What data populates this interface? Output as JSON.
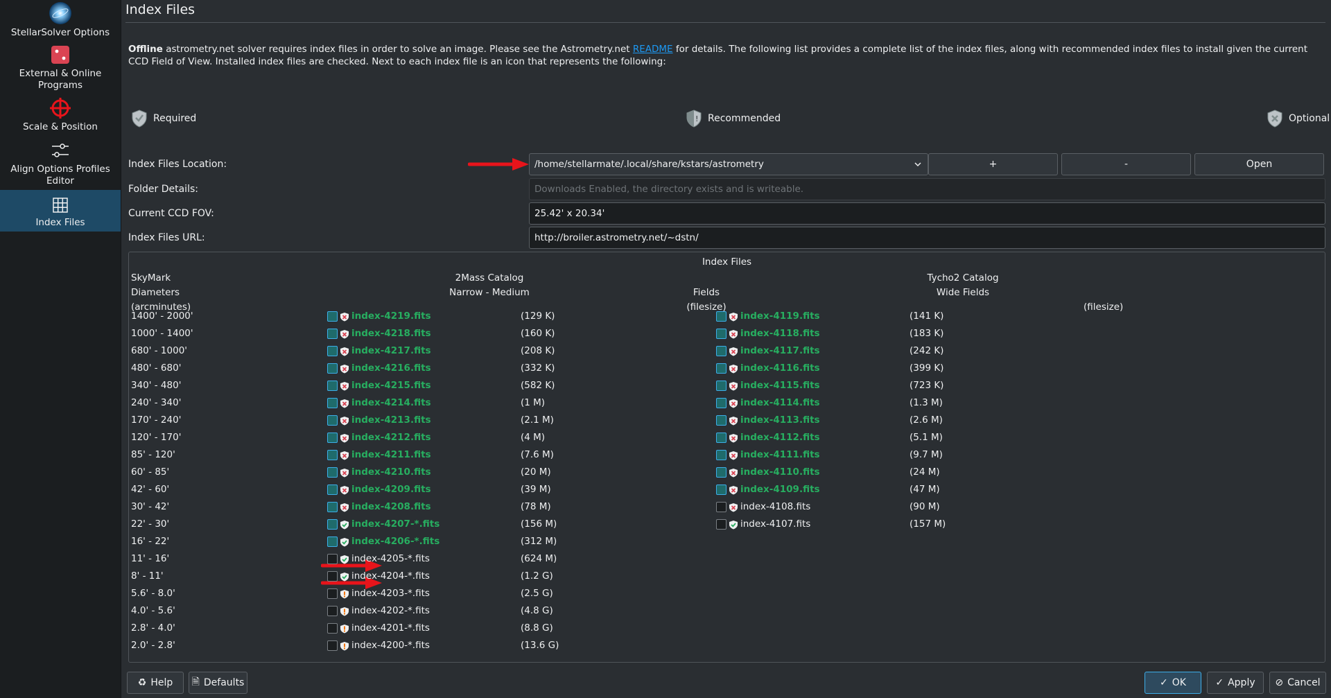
{
  "sidebar": {
    "items": [
      {
        "label": "StellarSolver Options"
      },
      {
        "label": "External & Online Programs"
      },
      {
        "label": "Scale & Position"
      },
      {
        "label": "Align Options Profiles Editor"
      },
      {
        "label": "Index Files"
      }
    ]
  },
  "page": {
    "title": "Index Files",
    "desc_bold": "Offline",
    "desc_pre": " astrometry.net solver requires index files in order to solve an image. Please see the Astrometry.net ",
    "desc_link": "README",
    "desc_post": " for details. The following list provides a complete list of the index files, along with recommended index files to install given the current CCD Field of View. Installed index files are checked. Next to each index file is an icon that represents the following:"
  },
  "legend": {
    "required": "Required",
    "recommended": "Recommended",
    "optional": "Optional"
  },
  "form": {
    "location_label": "Index Files Location:",
    "location_value": "/home/stellarmate/.local/share/kstars/astrometry",
    "add_label": "+",
    "remove_label": "-",
    "open_label": "Open",
    "folder_label": "Folder Details:",
    "folder_value": "Downloads Enabled, the directory exists and is writeable.",
    "fov_label": "Current CCD FOV:",
    "fov_value": "25.42' x 20.34'",
    "url_label": "Index Files URL:",
    "url_value": "http://broiler.astrometry.net/~dstn/"
  },
  "index_group": {
    "title": "Index Files",
    "skymark_line1": "SkyMark",
    "skymark_line2": "Diameters",
    "skymark_line3": "(arcminutes)",
    "mass_line1": "2Mass Catalog",
    "mass_line2": "Narrow - Medium",
    "fields_line1": "Fields",
    "fields_line2": "(filesize)",
    "tycho_line1": "Tycho2 Catalog",
    "tycho_line2": "Wide Fields",
    "tycho_filesize": "(filesize)",
    "rows": [
      {
        "range": "1400' - 2000'",
        "m_name": "index-4219.fits",
        "m_size": "(129 K)",
        "m_on": true,
        "m_icon": "optional",
        "t_name": "index-4119.fits",
        "t_size": "(141 K)",
        "t_on": true,
        "t_icon": "optional"
      },
      {
        "range": "1000' - 1400'",
        "m_name": "index-4218.fits",
        "m_size": "(160 K)",
        "m_on": true,
        "m_icon": "optional",
        "t_name": "index-4118.fits",
        "t_size": "(183 K)",
        "t_on": true,
        "t_icon": "optional"
      },
      {
        "range": "680' - 1000'",
        "m_name": "index-4217.fits",
        "m_size": "(208 K)",
        "m_on": true,
        "m_icon": "optional",
        "t_name": "index-4117.fits",
        "t_size": "(242 K)",
        "t_on": true,
        "t_icon": "optional"
      },
      {
        "range": "480' - 680'",
        "m_name": "index-4216.fits",
        "m_size": "(332 K)",
        "m_on": true,
        "m_icon": "optional",
        "t_name": "index-4116.fits",
        "t_size": "(399 K)",
        "t_on": true,
        "t_icon": "optional"
      },
      {
        "range": "340' - 480'",
        "m_name": "index-4215.fits",
        "m_size": "(582 K)",
        "m_on": true,
        "m_icon": "optional",
        "t_name": "index-4115.fits",
        "t_size": "(723 K)",
        "t_on": true,
        "t_icon": "optional"
      },
      {
        "range": "240' - 340'",
        "m_name": "index-4214.fits",
        "m_size": "(1 M)",
        "m_on": true,
        "m_icon": "optional",
        "t_name": "index-4114.fits",
        "t_size": "(1.3 M)",
        "t_on": true,
        "t_icon": "optional"
      },
      {
        "range": "170' - 240'",
        "m_name": "index-4213.fits",
        "m_size": "(2.1 M)",
        "m_on": true,
        "m_icon": "optional",
        "t_name": "index-4113.fits",
        "t_size": "(2.6 M)",
        "t_on": true,
        "t_icon": "optional"
      },
      {
        "range": "120' - 170'",
        "m_name": "index-4212.fits",
        "m_size": "(4 M)",
        "m_on": true,
        "m_icon": "optional",
        "t_name": "index-4112.fits",
        "t_size": "(5.1 M)",
        "t_on": true,
        "t_icon": "optional"
      },
      {
        "range": "85' - 120'",
        "m_name": "index-4211.fits",
        "m_size": "(7.6 M)",
        "m_on": true,
        "m_icon": "optional",
        "t_name": "index-4111.fits",
        "t_size": "(9.7 M)",
        "t_on": true,
        "t_icon": "optional"
      },
      {
        "range": "60' - 85'",
        "m_name": "index-4210.fits",
        "m_size": "(20 M)",
        "m_on": true,
        "m_icon": "optional",
        "t_name": "index-4110.fits",
        "t_size": "(24 M)",
        "t_on": true,
        "t_icon": "optional"
      },
      {
        "range": "42' - 60'",
        "m_name": "index-4209.fits",
        "m_size": "(39 M)",
        "m_on": true,
        "m_icon": "optional",
        "t_name": "index-4109.fits",
        "t_size": "(47 M)",
        "t_on": true,
        "t_icon": "optional"
      },
      {
        "range": "30' - 42'",
        "m_name": "index-4208.fits",
        "m_size": "(78 M)",
        "m_on": true,
        "m_icon": "optional",
        "t_name": "index-4108.fits",
        "t_size": "(90 M)",
        "t_on": false,
        "t_icon": "optional"
      },
      {
        "range": "22' - 30'",
        "m_name": "index-4207-*.fits",
        "m_size": "(156 M)",
        "m_on": true,
        "m_icon": "required",
        "t_name": "index-4107.fits",
        "t_size": "(157 M)",
        "t_on": false,
        "t_icon": "required"
      },
      {
        "range": "16' - 22'",
        "m_name": "index-4206-*.fits",
        "m_size": "(312 M)",
        "m_on": true,
        "m_icon": "required"
      },
      {
        "range": "11' - 16'",
        "m_name": "index-4205-*.fits",
        "m_size": "(624 M)",
        "m_on": false,
        "m_icon": "required"
      },
      {
        "range": "8' - 11'",
        "m_name": "index-4204-*.fits",
        "m_size": "(1.2 G)",
        "m_on": false,
        "m_icon": "required"
      },
      {
        "range": "5.6' - 8.0'",
        "m_name": "index-4203-*.fits",
        "m_size": "(2.5 G)",
        "m_on": false,
        "m_icon": "recommended"
      },
      {
        "range": "4.0' - 5.6'",
        "m_name": "index-4202-*.fits",
        "m_size": "(4.8 G)",
        "m_on": false,
        "m_icon": "recommended"
      },
      {
        "range": "2.8' - 4.0'",
        "m_name": "index-4201-*.fits",
        "m_size": "(8.8 G)",
        "m_on": false,
        "m_icon": "recommended"
      },
      {
        "range": "2.0' - 2.8'",
        "m_name": "index-4200-*.fits",
        "m_size": "(13.6 G)",
        "m_on": false,
        "m_icon": "recommended"
      }
    ]
  },
  "buttons": {
    "help": "Help",
    "defaults": "Defaults",
    "ok": "OK",
    "apply": "Apply",
    "cancel": "Cancel"
  },
  "colors": {
    "installed_text": "#27ae60",
    "accent": "#3daee9",
    "annotation_arrow": "#e8141b"
  }
}
